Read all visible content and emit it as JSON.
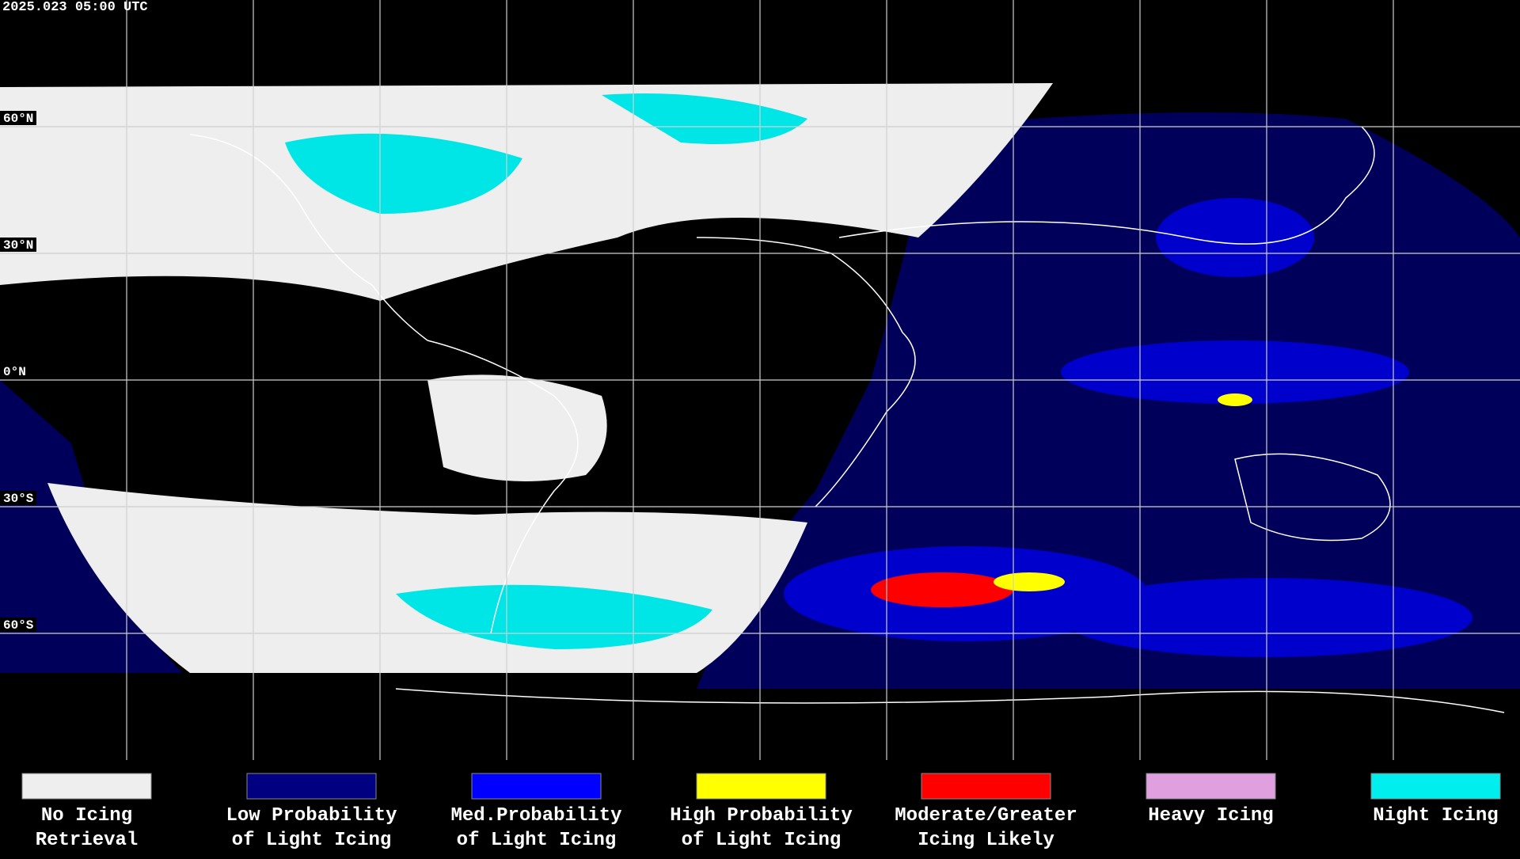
{
  "header": {
    "timestamp": "2025.023 05:00 UTC"
  },
  "map": {
    "latitude_labels": [
      "60°N",
      "30°N",
      "0°N",
      "30°S",
      "60°S"
    ]
  },
  "legend": {
    "items": [
      {
        "lines": [
          "No Icing",
          "Retrieval"
        ],
        "color": "#eeeeee"
      },
      {
        "lines": [
          "Low Probability",
          "of Light Icing"
        ],
        "color": "#000080"
      },
      {
        "lines": [
          "Med.Probability",
          "of Light Icing"
        ],
        "color": "#0000ff"
      },
      {
        "lines": [
          "High Probability",
          "of Light Icing"
        ],
        "color": "#ffff00"
      },
      {
        "lines": [
          "Moderate/Greater",
          "Icing Likely"
        ],
        "color": "#ff0000"
      },
      {
        "lines": [
          "Heavy Icing"
        ],
        "color": "#e0a0e0"
      },
      {
        "lines": [
          "Night Icing"
        ],
        "color": "#00eeee"
      }
    ]
  }
}
